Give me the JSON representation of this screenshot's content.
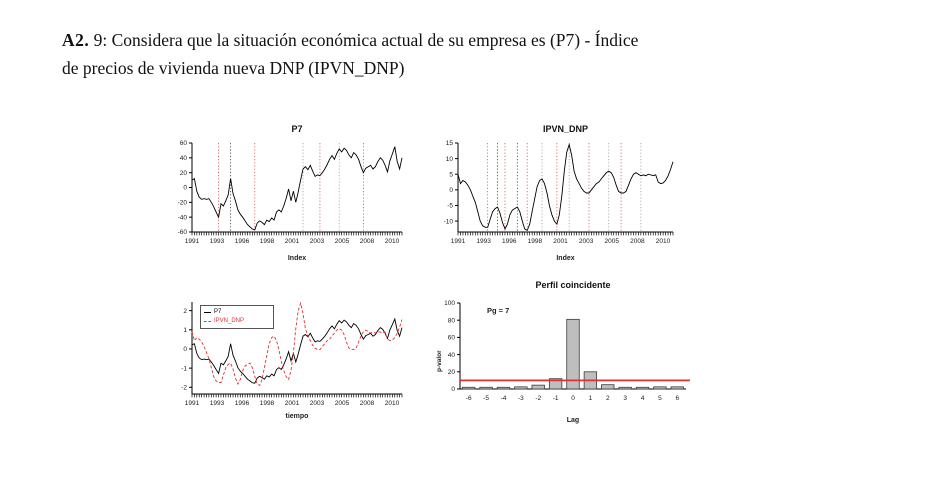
{
  "caption": {
    "bold_prefix": "A2.",
    "line1_rest": " 9: Considera que la situación económica actual de su empresa es (P7) - Índice",
    "line2": "de precios de vivienda nueva  DNP (IPVN_DNP)"
  },
  "colors": {
    "axis": "#000000",
    "line_black": "#000000",
    "line_red": "#e03131",
    "vline_red": "#d94f4f",
    "vline_black": "#3a3a3a",
    "vline_gray": "#9a9a9a",
    "bar_fill": "#bebebe",
    "bar_stroke": "#3c3c3c",
    "threshold_red": "#e03131",
    "tick_text": "#1a1a1a"
  },
  "chart_data": [
    {
      "id": "p7",
      "type": "line",
      "title": "P7",
      "xlabel": "Index",
      "x_tick_labels": [
        "1991",
        "1993",
        "1996",
        "1998",
        "2001",
        "2003",
        "2005",
        "2008",
        "2010"
      ],
      "ylim": [
        -60,
        60
      ],
      "yticks": [
        -60,
        -40,
        -20,
        0,
        20,
        40,
        60
      ],
      "values": [
        10,
        12,
        -5,
        -13,
        -16,
        -15,
        -16,
        -15,
        -20,
        -26,
        -33,
        -40,
        -22,
        -25,
        -18,
        -10,
        12,
        -8,
        -18,
        -30,
        -36,
        -40,
        -45,
        -50,
        -53,
        -56,
        -57,
        -48,
        -45,
        -47,
        -50,
        -44,
        -46,
        -41,
        -44,
        -33,
        -30,
        -33,
        -25,
        -15,
        -2,
        -18,
        -5,
        -20,
        -6,
        10,
        25,
        28,
        24,
        30,
        22,
        15,
        17,
        16,
        20,
        25,
        31,
        38,
        43,
        38,
        46,
        52,
        48,
        53,
        50,
        44,
        40,
        47,
        44,
        38,
        28,
        20,
        26,
        28,
        30,
        25,
        28,
        35,
        40,
        37,
        30,
        21,
        36,
        45,
        55,
        35,
        25,
        40
      ],
      "vlines": [
        {
          "index": 11,
          "color": "red"
        },
        {
          "index": 16,
          "color": "black"
        },
        {
          "index": 26,
          "color": "red"
        },
        {
          "index": 46,
          "color": "gray"
        },
        {
          "index": 53,
          "color": "red"
        },
        {
          "index": 61,
          "color": "gray"
        },
        {
          "index": 71,
          "color": "red"
        }
      ]
    },
    {
      "id": "ipvn",
      "type": "line",
      "title": "IPVN_DNP",
      "xlabel": "Index",
      "x_tick_labels": [
        "1991",
        "1993",
        "1996",
        "1998",
        "2001",
        "2003",
        "2005",
        "2008",
        "2010"
      ],
      "ylim": [
        -13.5,
        15
      ],
      "yticks": [
        -10,
        -5,
        0,
        5,
        10,
        15
      ],
      "values": [
        5,
        2,
        3,
        2.5,
        1.5,
        0,
        -2,
        -4,
        -7,
        -10,
        -11.5,
        -12,
        -12,
        -9.5,
        -7,
        -6,
        -5.5,
        -7.5,
        -10.5,
        -12.5,
        -11,
        -8,
        -6.5,
        -6,
        -5.5,
        -7,
        -10,
        -12.5,
        -13,
        -11,
        -7,
        -3,
        1,
        3,
        3.5,
        2,
        -1,
        -5,
        -8,
        -10,
        -11,
        -8,
        -2,
        6,
        12,
        14.5,
        11,
        6,
        3.5,
        2,
        0.5,
        -0.5,
        -1,
        -1,
        0,
        1,
        2,
        2.5,
        3.5,
        4.5,
        5.5,
        6,
        5.5,
        4,
        1.5,
        -0.5,
        -1,
        -1,
        -0.5,
        1.5,
        3.5,
        5,
        5.5,
        5,
        4.5,
        4.8,
        4.5,
        5,
        4.8,
        4.6,
        4.8,
        2.5,
        2,
        2.2,
        3,
        4.5,
        6.5,
        9
      ],
      "vlines": [
        {
          "index": 12,
          "color": "red"
        },
        {
          "index": 16,
          "color": "black"
        },
        {
          "index": 19,
          "color": "red"
        },
        {
          "index": 24,
          "color": "black"
        },
        {
          "index": 28,
          "color": "red"
        },
        {
          "index": 34,
          "color": "gray"
        },
        {
          "index": 40,
          "color": "red"
        },
        {
          "index": 45,
          "color": "gray"
        },
        {
          "index": 53,
          "color": "red"
        },
        {
          "index": 61,
          "color": "gray"
        },
        {
          "index": 66,
          "color": "red"
        },
        {
          "index": 74,
          "color": "gray"
        }
      ]
    },
    {
      "id": "std",
      "type": "line",
      "title": "",
      "xlabel": "tiempo",
      "x_tick_labels": [
        "1991",
        "1993",
        "1996",
        "1998",
        "2001",
        "2003",
        "2005",
        "2008",
        "2010"
      ],
      "ylim": [
        -2.35,
        2.45
      ],
      "yticks": [
        -2,
        -1,
        0,
        1,
        2
      ],
      "legend": [
        "P7",
        "IPVN_DNP"
      ],
      "series": [
        {
          "name": "P7",
          "source": "p7",
          "standardize": true,
          "dashed": false,
          "color": "#000000"
        },
        {
          "name": "IPVN_DNP",
          "source": "ipvn",
          "standardize": true,
          "dashed": true,
          "color": "#e03131"
        }
      ],
      "vlines": []
    },
    {
      "id": "perfil",
      "type": "bar",
      "title": "Perfil coincidente",
      "xlabel": "Lag",
      "ylabel": "p-valor",
      "annotation": "Pg = 7",
      "categories": [
        "-6",
        "-5",
        "-4",
        "-3",
        "-2",
        "-1",
        "0",
        "1",
        "2",
        "3",
        "4",
        "5",
        "6"
      ],
      "values": [
        2,
        2,
        2,
        2.5,
        4.5,
        12,
        81,
        20,
        5,
        2,
        2,
        2.5,
        2.5
      ],
      "threshold": 10,
      "ylim": [
        0,
        100
      ],
      "yticks": [
        0,
        20,
        40,
        60,
        80,
        100
      ]
    }
  ]
}
